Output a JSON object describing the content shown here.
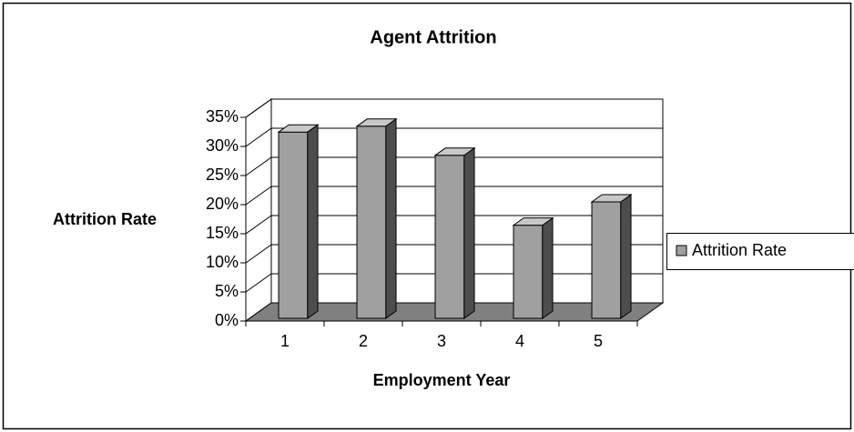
{
  "chart_data": {
    "type": "bar3d",
    "title": "Agent Attrition",
    "x_label": "Employment Year",
    "y_label": "Attrition Rate",
    "categories": [
      "1",
      "2",
      "3",
      "4",
      "5"
    ],
    "series": [
      {
        "name": "Attrition Rate",
        "color": "#a0a0a0",
        "values": [
          32,
          33,
          28,
          16,
          20
        ]
      }
    ],
    "ylim": [
      0,
      35
    ],
    "yticks": [
      {
        "value": 0,
        "label": "0%"
      },
      {
        "value": 5,
        "label": "5%"
      },
      {
        "value": 10,
        "label": "10%"
      },
      {
        "value": 15,
        "label": "15%"
      },
      {
        "value": 20,
        "label": "20%"
      },
      {
        "value": 25,
        "label": "25%"
      },
      {
        "value": 30,
        "label": "30%"
      },
      {
        "value": 35,
        "label": "35%"
      }
    ],
    "grid": true,
    "legend": "right"
  }
}
